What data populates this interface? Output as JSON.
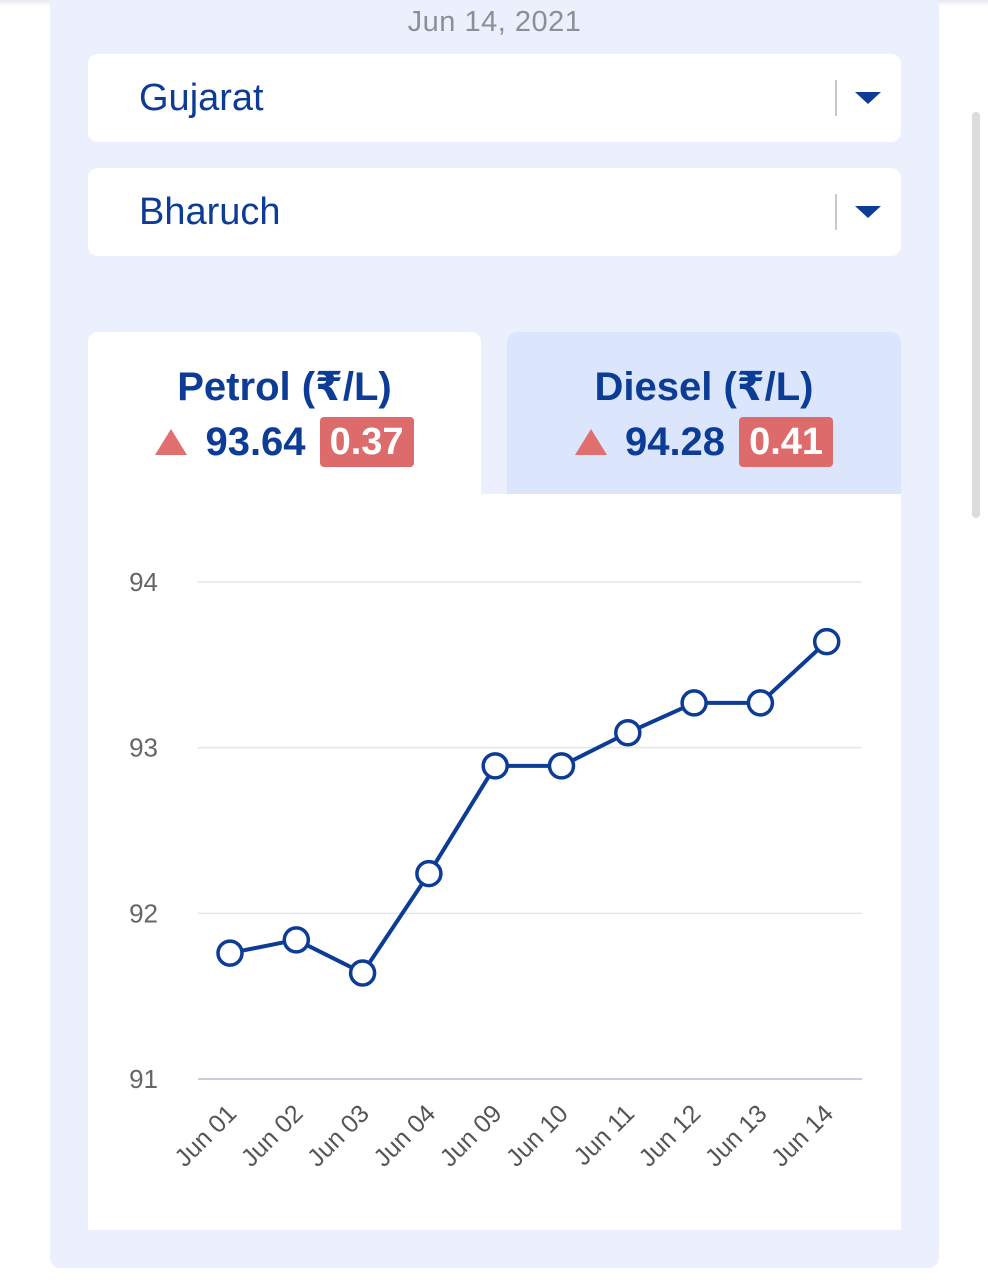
{
  "header": {
    "date": "Jun 14, 2021"
  },
  "state_select": {
    "value": "Gujarat"
  },
  "city_select": {
    "value": "Bharuch"
  },
  "tabs": [
    {
      "title": "Petrol (₹/L)",
      "price": "93.64",
      "change": "0.37",
      "trend": "up",
      "selected": true
    },
    {
      "title": "Diesel (₹/L)",
      "price": "94.28",
      "change": "0.41",
      "trend": "up",
      "selected": false
    }
  ],
  "colors": {
    "accent": "#0c3c96",
    "change_badge": "#de6b6b",
    "panel_bg": "#ecf0fc",
    "inactive_tab": "#dbe5fb"
  },
  "chart_data": {
    "type": "line",
    "title": "",
    "xlabel": "",
    "ylabel": "",
    "categories": [
      "Jun 01",
      "Jun 02",
      "Jun 03",
      "Jun 04",
      "Jun 09",
      "Jun 10",
      "Jun 11",
      "Jun 12",
      "Jun 13",
      "Jun 14"
    ],
    "series": [
      {
        "values": [
          91.76,
          91.84,
          91.64,
          92.24,
          92.89,
          92.89,
          93.09,
          93.27,
          93.27,
          93.64
        ]
      }
    ],
    "yticks": [
      91,
      92,
      93,
      94
    ],
    "ylim": [
      91,
      94
    ],
    "grid": true,
    "legend": "none"
  }
}
